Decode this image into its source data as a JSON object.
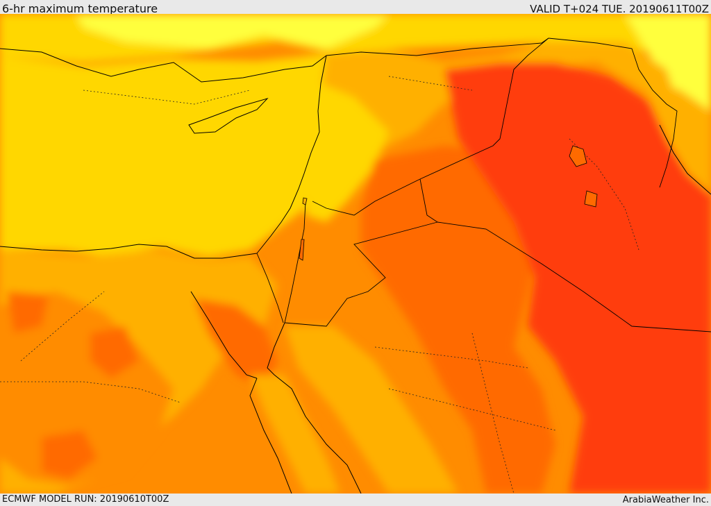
{
  "header": {
    "title": "6-hr maximum temperature",
    "valid": "VALID T+024 TUE. 20190611T00Z"
  },
  "footer": {
    "model_run": "ECMWF MODEL RUN: 20190610T00Z",
    "credit": "ArabiaWeather Inc."
  },
  "colors": {
    "band_light_yellow": "#ffff3c",
    "band_yellow": "#ffd700",
    "band_amber": "#ffb000",
    "band_orange": "#ff8c00",
    "band_dark_orange": "#ff6a00",
    "band_red": "#ff3d0a",
    "coastline": "#000000",
    "borders": "#000000"
  }
}
